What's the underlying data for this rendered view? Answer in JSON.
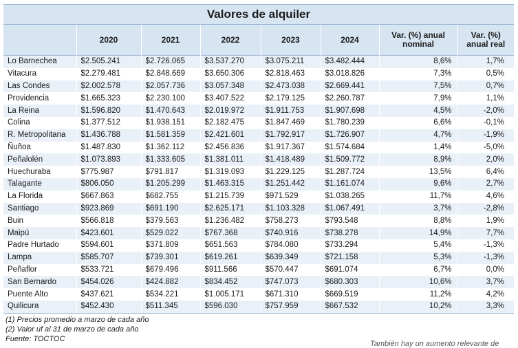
{
  "title": "Valores de alquiler",
  "headers": [
    "",
    "2020",
    "2021",
    "2022",
    "2023",
    "2024",
    "Var. (%) anual nominal",
    "Var. (%) anual real"
  ],
  "rows": [
    {
      "comuna": "Lo Barnechea",
      "v2020": "$2.505.241",
      "v2021": "$2.726.065",
      "v2022": "$3.537.270",
      "v2023": "$3.075.211",
      "v2024": "$3.482.444",
      "nominal": "8,6%",
      "real": "1,7%"
    },
    {
      "comuna": "Vitacura",
      "v2020": "$2.279.481",
      "v2021": "$2.848.669",
      "v2022": "$3.650.306",
      "v2023": "$2.818.463",
      "v2024": "$3.018.826",
      "nominal": "7,3%",
      "real": "0,5%"
    },
    {
      "comuna": "Las Condes",
      "v2020": "$2.002.578",
      "v2021": "$2.057.736",
      "v2022": "$3.057.348",
      "v2023": "$2.473.038",
      "v2024": "$2.669.441",
      "nominal": "7,5%",
      "real": "0,7%"
    },
    {
      "comuna": "Providencia",
      "v2020": "$1.665.323",
      "v2021": "$2.230.100",
      "v2022": "$3.407.522",
      "v2023": "$2.179.125",
      "v2024": "$2.260.787",
      "nominal": "7,9%",
      "real": "1,1%"
    },
    {
      "comuna": "La Reina",
      "v2020": "$1.596.820",
      "v2021": "$1.470.643",
      "v2022": "$2.019.972",
      "v2023": "$1.911.753",
      "v2024": "$1.907.698",
      "nominal": "4,5%",
      "real": "-2,0%"
    },
    {
      "comuna": "Colina",
      "v2020": "$1.377.512",
      "v2021": "$1.938.151",
      "v2022": "$2.182.475",
      "v2023": "$1.847.469",
      "v2024": "$1.780.239",
      "nominal": "6,6%",
      "real": "-0,1%"
    },
    {
      "comuna": "R. Metropolitana",
      "v2020": "$1.436.788",
      "v2021": "$1.581.359",
      "v2022": "$2.421.601",
      "v2023": "$1.792.917",
      "v2024": "$1.726.907",
      "nominal": "4,7%",
      "real": "-1,9%"
    },
    {
      "comuna": "Ñuñoa",
      "v2020": "$1.487.830",
      "v2021": "$1.362.112",
      "v2022": "$2.456.836",
      "v2023": "$1.917.367",
      "v2024": "$1.574.684",
      "nominal": "1,4%",
      "real": "-5,0%"
    },
    {
      "comuna": "Peñalolén",
      "v2020": "$1.073.893",
      "v2021": "$1.333.605",
      "v2022": "$1.381.011",
      "v2023": "$1.418.489",
      "v2024": "$1.509.772",
      "nominal": "8,9%",
      "real": "2,0%"
    },
    {
      "comuna": "Huechuraba",
      "v2020": "$775.987",
      "v2021": "$791.817",
      "v2022": "$1.319.093",
      "v2023": "$1.229.125",
      "v2024": "$1.287.724",
      "nominal": "13,5%",
      "real": "6,4%"
    },
    {
      "comuna": "Talagante",
      "v2020": "$806.050",
      "v2021": "$1.205.299",
      "v2022": "$1.463.315",
      "v2023": "$1.251.442",
      "v2024": "$1.161.074",
      "nominal": "9,6%",
      "real": "2,7%"
    },
    {
      "comuna": "La Florida",
      "v2020": "$667.863",
      "v2021": "$682.755",
      "v2022": "$1.215.739",
      "v2023": "$971.529",
      "v2024": "$1.038.265",
      "nominal": "11,7%",
      "real": "4,6%"
    },
    {
      "comuna": "Santiago",
      "v2020": "$923.869",
      "v2021": "$691.190",
      "v2022": "$2.625.171",
      "v2023": "$1.103.328",
      "v2024": "$1.067.491",
      "nominal": "3,7%",
      "real": "-2,8%"
    },
    {
      "comuna": "Buin",
      "v2020": "$566.818",
      "v2021": "$379.563",
      "v2022": "$1.236.482",
      "v2023": "$758.273",
      "v2024": "$793.548",
      "nominal": "8,8%",
      "real": "1,9%"
    },
    {
      "comuna": "Maipú",
      "v2020": "$423.601",
      "v2021": "$529.022",
      "v2022": "$767.368",
      "v2023": "$740.916",
      "v2024": "$738.278",
      "nominal": "14,9%",
      "real": "7,7%"
    },
    {
      "comuna": "Padre Hurtado",
      "v2020": "$594.601",
      "v2021": "$371.809",
      "v2022": "$651.563",
      "v2023": "$784.080",
      "v2024": "$733.294",
      "nominal": "5,4%",
      "real": "-1,3%"
    },
    {
      "comuna": "Lampa",
      "v2020": "$585.707",
      "v2021": "$739.301",
      "v2022": "$619.261",
      "v2023": "$639.349",
      "v2024": "$721.158",
      "nominal": "5,3%",
      "real": "-1,3%"
    },
    {
      "comuna": "Peñaflor",
      "v2020": "$533.721",
      "v2021": "$679.496",
      "v2022": "$911.566",
      "v2023": "$570.447",
      "v2024": "$691.074",
      "nominal": "6,7%",
      "real": "0,0%"
    },
    {
      "comuna": "San Bernardo",
      "v2020": "$454.026",
      "v2021": "$424.882",
      "v2022": "$834.452",
      "v2023": "$747.073",
      "v2024": "$680.303",
      "nominal": "10,6%",
      "real": "3,7%"
    },
    {
      "comuna": "Puente Alto",
      "v2020": "$437.621",
      "v2021": "$534.221",
      "v2022": "$1.005.171",
      "v2023": "$671.310",
      "v2024": "$669.519",
      "nominal": "11,2%",
      "real": "4,2%"
    },
    {
      "comuna": "Quilicura",
      "v2020": "$452.430",
      "v2021": "$511.345",
      "v2022": "$596.030",
      "v2023": "$757.959",
      "v2024": "$667.532",
      "nominal": "10,2%",
      "real": "3,3%"
    }
  ],
  "notes": [
    "(1) Precios promedio a marzo de cada año",
    "(2) Valor uf al 31 de marzo de cada año",
    "Fuente: TOCTOC"
  ],
  "cut_text": "También hay un aumento relevante de",
  "colors": {
    "header_bg": "#d7e5f3",
    "stripe_bg": "#e9f0f8",
    "rule": "#9db7d3"
  }
}
